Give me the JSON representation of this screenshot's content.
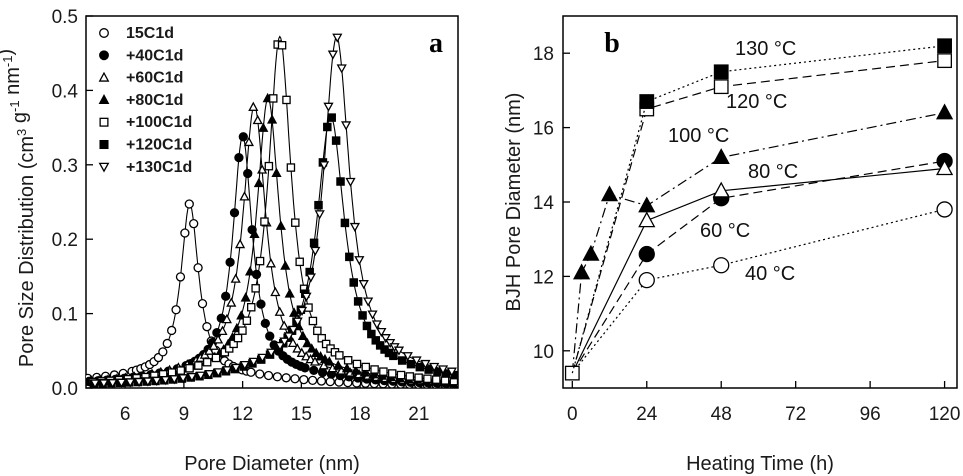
{
  "chart_data": [
    {
      "panel_label": "a",
      "type": "line",
      "xlabel": "Pore Diameter (nm)",
      "ylabel": "Pore Size Distribution (cm3 g-1 nm-1)",
      "ylabel_main": "Pore Size Distribution (cm",
      "ylabel_sup1": "3",
      "ylabel_mid": " g",
      "ylabel_sup2": "-1",
      "ylabel_mid2": " nm",
      "ylabel_sup3": "-1",
      "ylabel_end": ")",
      "xlim": [
        4,
        23
      ],
      "ylim": [
        0,
        0.5
      ],
      "xticks": [
        "6",
        "9",
        "12",
        "15",
        "18",
        "21"
      ],
      "yticks": [
        "0.0",
        "0.1",
        "0.2",
        "0.3",
        "0.4",
        "0.5"
      ],
      "legend_position": "top-left",
      "series": [
        {
          "name": "15C1d",
          "marker": "open-circle",
          "peak": 9.3,
          "height": 0.235,
          "width": 0.55,
          "base": 0.015
        },
        {
          "name": "+40C1d",
          "marker": "filled-circle",
          "peak": 12.0,
          "height": 0.325,
          "width": 0.6,
          "base": 0.018
        },
        {
          "name": "+60C1d",
          "marker": "open-triangle",
          "peak": 12.6,
          "height": 0.365,
          "width": 0.7,
          "base": 0.02
        },
        {
          "name": "+80C1d",
          "marker": "filled-triangle",
          "peak": 13.3,
          "height": 0.375,
          "width": 0.7,
          "base": 0.02
        },
        {
          "name": "+100C1d",
          "marker": "open-square",
          "peak": 13.9,
          "height": 0.455,
          "width": 0.7,
          "base": 0.025
        },
        {
          "name": "+120C1d",
          "marker": "filled-square",
          "peak": 16.5,
          "height": 0.345,
          "width": 0.85,
          "base": 0.025
        },
        {
          "name": "+130C1d",
          "marker": "open-down-triangle",
          "peak": 16.8,
          "height": 0.45,
          "width": 0.8,
          "base": 0.03
        }
      ]
    },
    {
      "panel_label": "b",
      "type": "line",
      "xlabel": "Heating Time (h)",
      "ylabel": "BJH Pore Diameter (nm)",
      "xlim": [
        -3,
        124
      ],
      "ylim": [
        9,
        19
      ],
      "xticks": [
        0,
        24,
        48,
        72,
        96,
        120
      ],
      "yticks": [
        10,
        12,
        14,
        16,
        18
      ],
      "series": [
        {
          "label_num": "40",
          "label_unit": " °C",
          "marker": "open-circle",
          "style": "dotted",
          "x": [
            0,
            24,
            48,
            120
          ],
          "y": [
            9.4,
            11.9,
            12.3,
            13.8
          ]
        },
        {
          "label_num": "60",
          "label_unit": " °C",
          "marker": "filled-circle",
          "style": "dash",
          "x": [
            0,
            24,
            48,
            120
          ],
          "y": [
            9.4,
            12.6,
            14.1,
            15.1
          ]
        },
        {
          "label_num": "80",
          "label_unit": " °C",
          "marker": "open-triangle",
          "style": "solid",
          "x": [
            0,
            24,
            48,
            120
          ],
          "y": [
            9.4,
            13.5,
            14.3,
            14.9
          ]
        },
        {
          "label_num": "100",
          "label_unit": " °C",
          "marker": "filled-triangle",
          "style": "dashdot",
          "x": [
            0,
            3,
            6,
            12,
            24,
            48,
            120
          ],
          "y": [
            9.4,
            12.1,
            12.6,
            14.2,
            13.9,
            15.2,
            16.4
          ]
        },
        {
          "label_num": "120",
          "label_unit": " °C",
          "marker": "open-square",
          "style": "dash",
          "x": [
            0,
            24,
            48,
            120
          ],
          "y": [
            9.4,
            16.5,
            17.1,
            17.8
          ]
        },
        {
          "label_num": "130",
          "label_unit": " °C",
          "marker": "filled-square",
          "style": "dotted",
          "x": [
            0,
            24,
            48,
            120
          ],
          "y": [
            9.4,
            16.7,
            17.5,
            18.2
          ]
        }
      ]
    }
  ]
}
